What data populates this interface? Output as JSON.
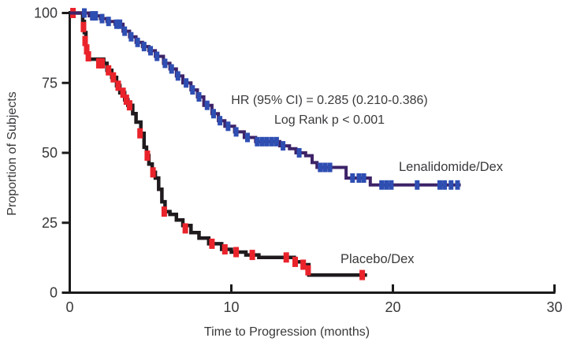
{
  "chart_data": {
    "type": "line",
    "subtype": "kaplan-meier-step",
    "title": "",
    "xlabel": "Time to Progression (months)",
    "ylabel": "Proportion of Subjects",
    "xlim": [
      0,
      30
    ],
    "ylim": [
      0,
      100
    ],
    "x_ticks": [
      0,
      10,
      20,
      30
    ],
    "y_ticks": [
      0,
      25,
      50,
      75,
      100
    ],
    "grid": false,
    "legend_position": "inline-labels",
    "annotation": {
      "line1": "HR (95% CI) = 0.285 (0.210-0.386)",
      "line2": "Log Rank p < 0.001"
    },
    "colors": {
      "axis": "#1a1a1a",
      "text": "#38383c",
      "lenalidomide_line": "#3d2368",
      "lenalidomide_censor": "#2e4eb2",
      "placebo_line": "#1f1a1d",
      "placebo_censor": "#ea232b"
    },
    "series": [
      {
        "name": "Lenalidomide/Dex",
        "line_color": "#3d2368",
        "censor_color": "#2e4eb2",
        "steps": [
          [
            0,
            100
          ],
          [
            1.2,
            99
          ],
          [
            1.9,
            98
          ],
          [
            2.3,
            97
          ],
          [
            2.8,
            96
          ],
          [
            3.3,
            93.5
          ],
          [
            3.7,
            91.5
          ],
          [
            4.1,
            89.5
          ],
          [
            4.5,
            88
          ],
          [
            4.9,
            86.5
          ],
          [
            5.3,
            84.5
          ],
          [
            5.8,
            82
          ],
          [
            6.2,
            80
          ],
          [
            6.6,
            77.5
          ],
          [
            7.0,
            75
          ],
          [
            7.5,
            72.5
          ],
          [
            7.9,
            70
          ],
          [
            8.3,
            67
          ],
          [
            8.8,
            64
          ],
          [
            9.2,
            61.5
          ],
          [
            9.6,
            59.5
          ],
          [
            10.2,
            57.5
          ],
          [
            10.8,
            55.5
          ],
          [
            11.5,
            54
          ],
          [
            13.0,
            52.5
          ],
          [
            13.6,
            51.5
          ],
          [
            14.0,
            50
          ],
          [
            14.6,
            49
          ],
          [
            15.0,
            46.5
          ],
          [
            15.3,
            44.8
          ],
          [
            17.1,
            41
          ],
          [
            18.6,
            38.5
          ],
          [
            24.2,
            38.5
          ]
        ],
        "censors": [
          [
            0.9,
            100
          ],
          [
            1.4,
            99
          ],
          [
            1.6,
            99
          ],
          [
            2.0,
            98
          ],
          [
            2.4,
            97
          ],
          [
            2.9,
            96
          ],
          [
            3.1,
            96
          ],
          [
            3.4,
            93.5
          ],
          [
            3.8,
            91.5
          ],
          [
            4.2,
            89.5
          ],
          [
            4.6,
            88
          ],
          [
            5.0,
            86.5
          ],
          [
            5.4,
            84.5
          ],
          [
            5.9,
            82
          ],
          [
            6.3,
            80
          ],
          [
            6.7,
            77.5
          ],
          [
            7.2,
            75
          ],
          [
            7.6,
            72.5
          ],
          [
            8.0,
            70
          ],
          [
            8.5,
            67
          ],
          [
            8.9,
            64
          ],
          [
            9.3,
            61.5
          ],
          [
            9.8,
            59.5
          ],
          [
            10.3,
            57.5
          ],
          [
            11.0,
            55.5
          ],
          [
            11.6,
            54
          ],
          [
            11.9,
            54
          ],
          [
            12.2,
            54
          ],
          [
            12.5,
            54
          ],
          [
            12.8,
            54
          ],
          [
            13.2,
            52.5
          ],
          [
            14.2,
            50
          ],
          [
            15.5,
            44.8
          ],
          [
            15.8,
            44.8
          ],
          [
            16.1,
            44.8
          ],
          [
            17.5,
            41
          ],
          [
            17.9,
            41
          ],
          [
            18.2,
            41
          ],
          [
            19.3,
            38.5
          ],
          [
            19.6,
            38.5
          ],
          [
            19.9,
            38.5
          ],
          [
            21.5,
            38.5
          ],
          [
            22.9,
            38.5
          ],
          [
            23.2,
            38.5
          ],
          [
            23.6,
            38.5
          ],
          [
            24.0,
            38.5
          ]
        ]
      },
      {
        "name": "Placebo/Dex",
        "line_color": "#1f1a1d",
        "censor_color": "#ea232b",
        "steps": [
          [
            0,
            100
          ],
          [
            0.8,
            97
          ],
          [
            0.9,
            93
          ],
          [
            1.0,
            88
          ],
          [
            1.1,
            85.5
          ],
          [
            1.2,
            83.5
          ],
          [
            2.1,
            82
          ],
          [
            2.3,
            79.5
          ],
          [
            2.6,
            77
          ],
          [
            2.9,
            74
          ],
          [
            3.1,
            71.5
          ],
          [
            3.4,
            69
          ],
          [
            3.6,
            67
          ],
          [
            3.9,
            64
          ],
          [
            4.1,
            61
          ],
          [
            4.4,
            57
          ],
          [
            4.6,
            52
          ],
          [
            4.75,
            49
          ],
          [
            4.9,
            46
          ],
          [
            5.1,
            43
          ],
          [
            5.3,
            41
          ],
          [
            5.5,
            37
          ],
          [
            5.7,
            32.5
          ],
          [
            5.9,
            29
          ],
          [
            6.2,
            28
          ],
          [
            6.6,
            26
          ],
          [
            7.0,
            24
          ],
          [
            7.5,
            21.5
          ],
          [
            8.0,
            19.5
          ],
          [
            8.6,
            17.5
          ],
          [
            9.4,
            15.5
          ],
          [
            10.0,
            14.5
          ],
          [
            10.9,
            13.5
          ],
          [
            11.7,
            12.6
          ],
          [
            13.9,
            11
          ],
          [
            14.4,
            10
          ],
          [
            14.8,
            6.3
          ],
          [
            18.4,
            6.3
          ]
        ],
        "censors": [
          [
            0.2,
            100
          ],
          [
            0.85,
            95
          ],
          [
            0.95,
            90
          ],
          [
            1.05,
            87
          ],
          [
            1.15,
            84.5
          ],
          [
            1.8,
            82
          ],
          [
            2.0,
            82
          ],
          [
            2.4,
            79.5
          ],
          [
            2.7,
            77
          ],
          [
            3.0,
            74
          ],
          [
            3.3,
            71.5
          ],
          [
            3.5,
            69
          ],
          [
            3.7,
            67
          ],
          [
            4.35,
            57
          ],
          [
            4.8,
            49
          ],
          [
            5.15,
            43
          ],
          [
            5.85,
            29
          ],
          [
            7.15,
            23
          ],
          [
            8.8,
            17.5
          ],
          [
            9.6,
            15.5
          ],
          [
            10.3,
            14.5
          ],
          [
            11.3,
            13.5
          ],
          [
            13.4,
            12.6
          ],
          [
            13.95,
            11
          ],
          [
            14.45,
            10
          ],
          [
            14.75,
            8
          ],
          [
            18.1,
            6.3
          ]
        ]
      }
    ]
  }
}
